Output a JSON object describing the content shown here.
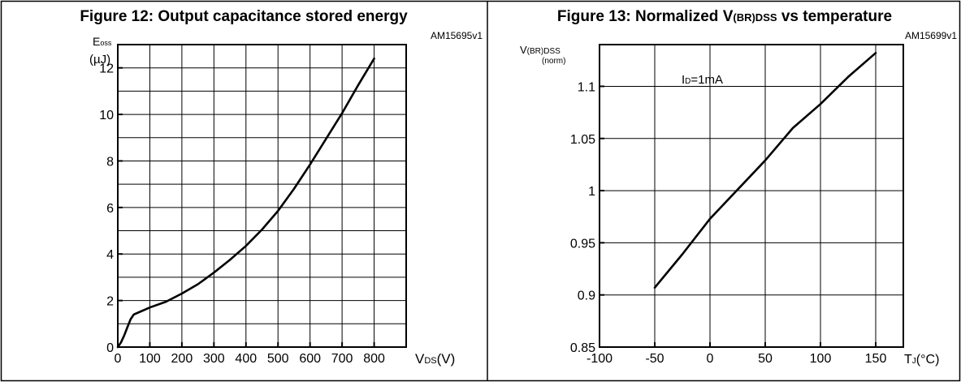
{
  "figures": [
    {
      "title": "Figure 12: Output capacitance stored energy",
      "code": "AM15695v1",
      "ylabel_main": "E",
      "ylabel_sub": "oss",
      "ylabel_unit": "(µJ)",
      "xlabel_main": "V",
      "xlabel_sub": "DS",
      "xlabel_unit": "(V)"
    },
    {
      "title": "Figure 13: Normalized V(BR)DSS vs temperature",
      "title_main": "Figure 13: Normalized V",
      "title_sub": "(BR)DSS",
      "title_end": " vs temperature",
      "code": "AM15699v1",
      "ylabel_main": "V",
      "ylabel_sub": "(BR)DSS",
      "ylabel_unit": "(norm)",
      "xlabel_main": "T",
      "xlabel_sub": "J",
      "xlabel_unit": "(°C)",
      "annotation_main": "I",
      "annotation_sub": "D",
      "annotation_end": "=1mA"
    }
  ],
  "chart_data": [
    {
      "type": "line",
      "title": "Figure 12: Output capacitance stored energy",
      "xlabel": "VDS(V)",
      "ylabel": "Eoss (µJ)",
      "xlim": [
        0,
        900
      ],
      "ylim": [
        0,
        13
      ],
      "xticks": [
        0,
        100,
        200,
        300,
        400,
        500,
        600,
        700,
        800
      ],
      "yticks": [
        0,
        2,
        4,
        6,
        8,
        10,
        12
      ],
      "grid": true,
      "series": [
        {
          "x": [
            0,
            10,
            20,
            30,
            40,
            50,
            75,
            100,
            150,
            200,
            250,
            300,
            350,
            400,
            450,
            500,
            550,
            600,
            650,
            700,
            750,
            800
          ],
          "y": [
            0,
            0.2,
            0.5,
            0.85,
            1.2,
            1.4,
            1.55,
            1.7,
            1.95,
            2.3,
            2.7,
            3.2,
            3.75,
            4.35,
            5.05,
            5.85,
            6.8,
            7.85,
            8.95,
            10.05,
            11.25,
            12.4
          ]
        }
      ]
    },
    {
      "type": "line",
      "title": "Figure 13: Normalized V(BR)DSS vs temperature",
      "xlabel": "TJ(°C)",
      "ylabel": "V(BR)DSS (norm)",
      "xlim": [
        -100,
        175
      ],
      "ylim": [
        0.85,
        1.14
      ],
      "xticks": [
        -100,
        -50,
        0,
        50,
        100,
        150
      ],
      "yticks": [
        0.85,
        0.9,
        0.95,
        1,
        1.05,
        1.1
      ],
      "ytick_labels": [
        "0.85",
        "0.9",
        "0.95",
        "1",
        "1.05",
        "1.1"
      ],
      "grid": true,
      "annotation": "ID=1mA",
      "series": [
        {
          "x": [
            -50,
            -25,
            0,
            25,
            50,
            75,
            100,
            125,
            150
          ],
          "y": [
            0.907,
            0.939,
            0.973,
            1.001,
            1.029,
            1.06,
            1.083,
            1.109,
            1.132
          ]
        }
      ]
    }
  ]
}
